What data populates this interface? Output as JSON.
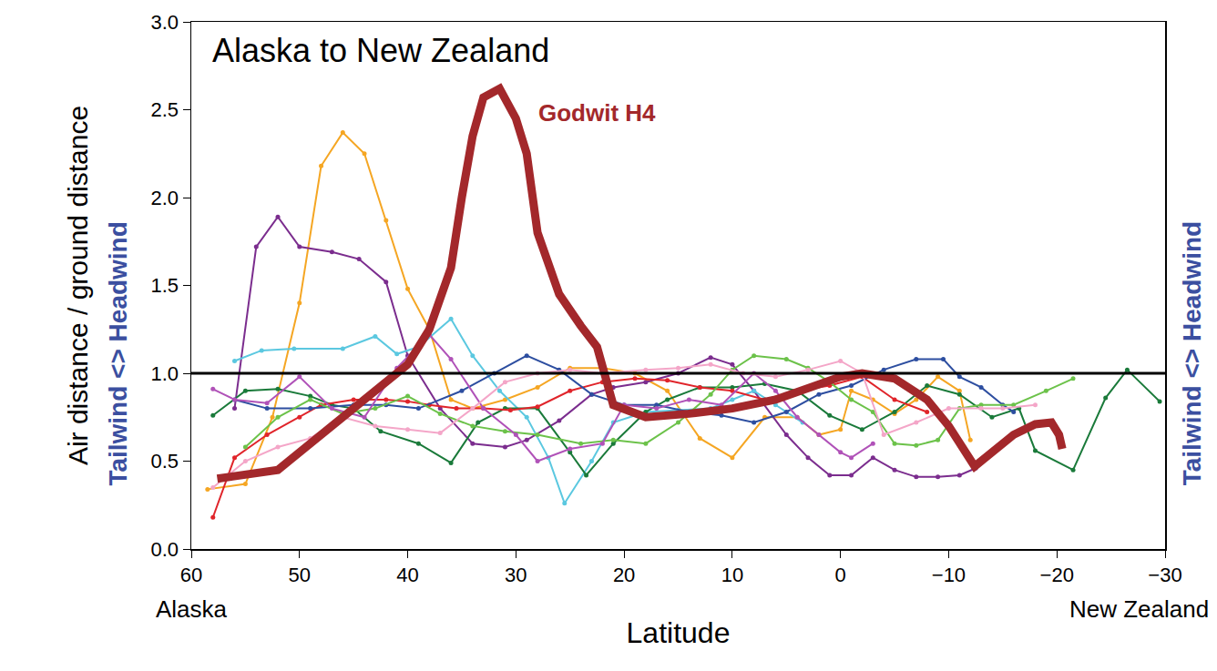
{
  "chart_data": {
    "type": "line",
    "title": "Alaska to New Zealand",
    "x_label": "Latitude",
    "y_label": "Air distance / ground distance",
    "side_label": "Tailwind <> Headwind",
    "x_end_labels": [
      "Alaska",
      "New Zealand"
    ],
    "xlim": [
      60,
      -30
    ],
    "xticks": [
      60,
      50,
      40,
      30,
      20,
      10,
      0,
      {
        "value": -10,
        "label": "−10"
      },
      {
        "value": -20,
        "label": "−20"
      },
      {
        "value": -30,
        "label": "−30"
      }
    ],
    "ylim": [
      0,
      3
    ],
    "yticks": [
      {
        "value": 0,
        "label": "0.0"
      },
      {
        "value": 0.5,
        "label": "0.5"
      },
      {
        "value": 1,
        "label": "1.0"
      },
      {
        "value": 1.5,
        "label": "1.5"
      },
      {
        "value": 2,
        "label": "2.0"
      },
      {
        "value": 2.5,
        "label": "2.5"
      },
      {
        "value": 3,
        "label": "3.0"
      }
    ],
    "hline": 1,
    "grid": false,
    "series": [
      {
        "color": "#f5a623",
        "marker": "circle",
        "line_style": "solid",
        "x": [
          58.5,
          55,
          52.5,
          50,
          48,
          46,
          44,
          42,
          40,
          38,
          36,
          34,
          31,
          28,
          25,
          22,
          19,
          16,
          13,
          10,
          7,
          4,
          2,
          0,
          -1,
          -3,
          -5,
          -7,
          -9,
          -11,
          -12
        ],
        "values": [
          0.34,
          0.37,
          0.75,
          1.4,
          2.18,
          2.37,
          2.25,
          1.87,
          1.48,
          1.25,
          0.85,
          0.8,
          0.85,
          0.92,
          1.03,
          1.03,
          1.0,
          0.9,
          0.63,
          0.52,
          0.75,
          0.75,
          0.65,
          0.68,
          0.9,
          0.85,
          0.77,
          0.85,
          0.98,
          0.9,
          0.62
        ]
      },
      {
        "color": "#7b2d8e",
        "marker": "circle",
        "line_style": "solid",
        "x": [
          56,
          54,
          52,
          50,
          47,
          44.5,
          42,
          40,
          37,
          34,
          31,
          29,
          26,
          23,
          21,
          18,
          15,
          12,
          10,
          8,
          5,
          3,
          1,
          -1,
          -3,
          -5,
          -7,
          -9,
          -11,
          -12.5
        ],
        "values": [
          0.8,
          1.72,
          1.89,
          1.72,
          1.69,
          1.65,
          1.52,
          1.1,
          0.8,
          0.6,
          0.58,
          0.62,
          0.73,
          0.88,
          0.92,
          0.95,
          1.0,
          1.09,
          1.05,
          0.9,
          0.65,
          0.52,
          0.42,
          0.42,
          0.52,
          0.45,
          0.41,
          0.41,
          0.42,
          0.46
        ]
      },
      {
        "color": "#5bc8e0",
        "marker": "circle",
        "line_style": "solid",
        "x": [
          56,
          53.5,
          50.5,
          46,
          43,
          41,
          39,
          36,
          34,
          31.5,
          29,
          27,
          25.5,
          23,
          21,
          18,
          15,
          12,
          10,
          8,
          6,
          3.5
        ],
        "values": [
          1.07,
          1.13,
          1.14,
          1.14,
          1.21,
          1.11,
          1.15,
          1.31,
          1.1,
          0.9,
          0.75,
          0.52,
          0.26,
          0.5,
          0.72,
          0.78,
          0.79,
          0.8,
          0.85,
          0.9,
          0.82,
          0.72
        ]
      },
      {
        "color": "#1a7a3a",
        "marker": "circle",
        "line_style": "solid",
        "x": [
          58,
          55,
          52,
          49,
          47,
          45,
          42.5,
          39,
          36,
          33.5,
          31,
          28,
          25,
          23.5,
          21,
          18,
          16,
          13,
          10,
          7,
          4,
          1,
          -2,
          -5,
          -8,
          -11,
          -14,
          -16.5,
          -18,
          -21.5,
          -24.5,
          -26.5,
          -29.5
        ],
        "values": [
          0.76,
          0.9,
          0.91,
          0.87,
          0.82,
          0.8,
          0.67,
          0.6,
          0.49,
          0.72,
          0.8,
          0.8,
          0.55,
          0.42,
          0.6,
          0.78,
          0.85,
          0.92,
          0.92,
          0.94,
          0.9,
          0.76,
          0.68,
          0.78,
          0.93,
          0.88,
          0.75,
          0.8,
          0.56,
          0.45,
          0.86,
          1.02,
          0.84
        ]
      },
      {
        "color": "#e0242a",
        "marker": "circle",
        "line_style": "solid",
        "x": [
          58,
          56,
          53,
          50,
          48,
          45,
          42,
          40,
          38,
          35.5,
          33,
          30.5,
          28,
          25,
          22,
          19,
          16,
          13,
          10,
          7,
          4,
          1,
          -2,
          -5,
          -8
        ],
        "values": [
          0.18,
          0.52,
          0.65,
          0.75,
          0.82,
          0.85,
          0.85,
          0.84,
          0.82,
          0.8,
          0.8,
          0.79,
          0.81,
          0.9,
          0.95,
          0.97,
          0.96,
          0.92,
          0.9,
          0.85,
          0.9,
          0.93,
          0.98,
          0.85,
          0.78
        ]
      },
      {
        "color": "#2d4ea0",
        "marker": "circle",
        "line_style": "solid",
        "x": [
          56,
          53,
          49,
          45,
          42,
          39,
          35,
          32,
          29,
          26,
          23,
          20,
          17,
          14,
          11,
          8,
          5,
          2,
          -1,
          -4,
          -7,
          -9.5,
          -11,
          -13,
          -15,
          -16
        ],
        "values": [
          0.85,
          0.8,
          0.8,
          0.82,
          0.82,
          0.8,
          0.9,
          1.0,
          1.1,
          1.02,
          0.88,
          0.82,
          0.82,
          0.78,
          0.76,
          0.72,
          0.78,
          0.88,
          0.93,
          1.02,
          1.08,
          1.08,
          0.98,
          0.92,
          0.82,
          0.78
        ]
      },
      {
        "color": "#6cc24a",
        "marker": "circle",
        "line_style": "solid",
        "x": [
          55,
          52,
          49,
          46,
          43,
          40,
          37,
          34,
          31,
          28,
          24,
          21,
          18,
          15,
          12,
          10,
          8,
          5,
          3,
          1,
          -1,
          -3,
          -5,
          -7,
          -9,
          -11,
          -13,
          -16,
          -19,
          -21.5
        ],
        "values": [
          0.58,
          0.75,
          0.85,
          0.77,
          0.8,
          0.87,
          0.77,
          0.7,
          0.67,
          0.65,
          0.6,
          0.62,
          0.6,
          0.72,
          0.88,
          1.02,
          1.1,
          1.08,
          1.03,
          0.95,
          0.85,
          0.78,
          0.6,
          0.59,
          0.62,
          0.8,
          0.82,
          0.82,
          0.9,
          0.97
        ]
      },
      {
        "color": "#b052b8",
        "marker": "circle",
        "line_style": "solid",
        "x": [
          58,
          56,
          53,
          50,
          47,
          44,
          41,
          38,
          36,
          33,
          30,
          28,
          25,
          22,
          20,
          17,
          14,
          11,
          8,
          6,
          4,
          2,
          0,
          -1,
          -3
        ],
        "values": [
          0.91,
          0.85,
          0.83,
          0.98,
          0.8,
          0.75,
          1.03,
          1.22,
          1.08,
          0.8,
          0.65,
          0.5,
          0.57,
          0.6,
          0.82,
          0.8,
          0.85,
          0.82,
          1.0,
          0.9,
          0.75,
          0.65,
          0.55,
          0.52,
          0.6
        ]
      },
      {
        "color": "#f4a6c8",
        "marker": "circle",
        "line_style": "solid",
        "x": [
          58,
          55,
          52,
          49,
          46,
          43,
          40,
          37,
          34,
          31,
          28,
          25,
          22,
          18,
          15,
          12,
          9,
          6,
          3,
          0,
          -2,
          -4,
          -7,
          -10,
          -13,
          -15,
          -18
        ],
        "values": [
          0.35,
          0.5,
          0.58,
          0.63,
          0.75,
          0.7,
          0.68,
          0.66,
          0.8,
          0.95,
          1.0,
          1.02,
          1.0,
          1.02,
          1.03,
          1.05,
          1.0,
          0.98,
          1.02,
          1.07,
          1.0,
          0.65,
          0.72,
          0.8,
          0.8,
          0.8,
          0.82
        ]
      },
      {
        "name": "Godwit H4",
        "color": "#a3282b",
        "marker": "none",
        "line_style": "solid",
        "x": [
          57.6,
          52,
          48,
          44,
          40,
          38,
          36,
          35,
          34,
          33,
          31.5,
          30,
          29,
          28,
          26,
          24,
          22.5,
          21,
          18,
          14,
          10,
          6,
          3,
          0,
          -2,
          -5,
          -8,
          -10,
          -12.4,
          -14,
          -16,
          -18,
          -19.5,
          -20.2,
          -20.5
        ],
        "values": [
          0.4,
          0.45,
          0.65,
          0.85,
          1.05,
          1.25,
          1.6,
          2.0,
          2.35,
          2.57,
          2.62,
          2.45,
          2.25,
          1.8,
          1.45,
          1.27,
          1.15,
          0.82,
          0.75,
          0.77,
          0.8,
          0.85,
          0.92,
          0.98,
          1.0,
          0.97,
          0.85,
          0.7,
          0.47,
          0.55,
          0.65,
          0.71,
          0.72,
          0.65,
          0.57
        ]
      }
    ]
  }
}
